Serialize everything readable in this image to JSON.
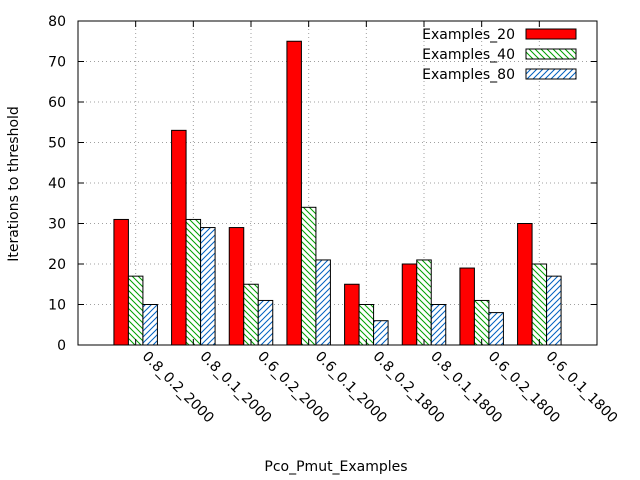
{
  "chart_data": {
    "type": "bar",
    "title": "",
    "xlabel": "Pco_Pmut_Examples",
    "ylabel": "Iterations to threshold",
    "ylim": [
      0,
      80
    ],
    "yticks": [
      0,
      10,
      20,
      30,
      40,
      50,
      60,
      70,
      80
    ],
    "grid": true,
    "legend_position": "top-right",
    "categories": [
      "0.8_0.2_2000",
      "0.8_0.1_2000",
      "0.6_0.2_2000",
      "0.6_0.1_2000",
      "0.8_0.2_1800",
      "0.8_0.1_1800",
      "0.6_0.2_1800",
      "0.6_0.1_1800"
    ],
    "series": [
      {
        "name": "Examples_20",
        "values": [
          31,
          53,
          29,
          75,
          15,
          20,
          19,
          30
        ],
        "color": "#ff0000",
        "pattern": "solid"
      },
      {
        "name": "Examples_40",
        "values": [
          17,
          31,
          15,
          34,
          10,
          21,
          11,
          20
        ],
        "color": "#00a000",
        "pattern": "hatch-back"
      },
      {
        "name": "Examples_80",
        "values": [
          10,
          29,
          11,
          21,
          6,
          10,
          8,
          17
        ],
        "color": "#0060c0",
        "pattern": "hatch-forward"
      }
    ]
  }
}
